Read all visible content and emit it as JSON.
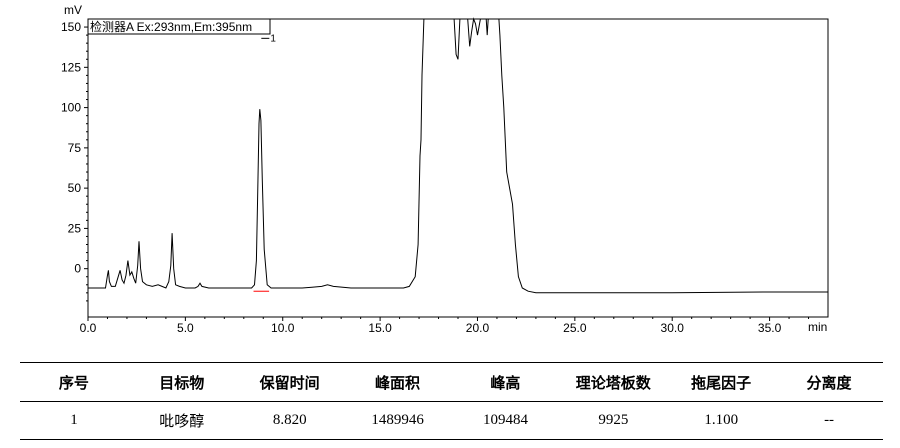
{
  "chart_data": {
    "type": "line",
    "title": "",
    "legend_text": "检测器A Ex:293nm,Em:395nm",
    "ylabel": "mV",
    "xlabel": "min",
    "xlim": [
      0,
      38
    ],
    "ylim": [
      -30,
      155
    ],
    "x_ticks": [
      0,
      5,
      10,
      15,
      20,
      25,
      30,
      35
    ],
    "x_tick_labels": [
      "0.0",
      "5.0",
      "10.0",
      "15.0",
      "20.0",
      "25.0",
      "30.0",
      "35.0"
    ],
    "y_ticks": [
      0,
      25,
      50,
      75,
      100,
      125,
      150
    ],
    "y_tick_labels": [
      "0",
      "25",
      "50",
      "75",
      "100",
      "125",
      "150"
    ],
    "grid": false,
    "line_color": "#000000",
    "baseline_color": "#ff0000",
    "peak_label": "1",
    "peak_label_at": [
      8.9,
      143
    ],
    "integration_baseline": [
      [
        8.5,
        -14
      ],
      [
        9.3,
        -14
      ]
    ],
    "series": [
      {
        "points": [
          [
            0.0,
            -12
          ],
          [
            0.9,
            -12
          ],
          [
            1.0,
            -4
          ],
          [
            1.05,
            -1
          ],
          [
            1.1,
            -8
          ],
          [
            1.2,
            -11
          ],
          [
            1.4,
            -11
          ],
          [
            1.55,
            -5
          ],
          [
            1.65,
            -1
          ],
          [
            1.75,
            -7
          ],
          [
            1.85,
            -9
          ],
          [
            1.95,
            -4
          ],
          [
            2.05,
            5
          ],
          [
            2.15,
            -4
          ],
          [
            2.25,
            -2
          ],
          [
            2.35,
            -6
          ],
          [
            2.45,
            -9
          ],
          [
            2.55,
            2
          ],
          [
            2.62,
            17
          ],
          [
            2.7,
            0
          ],
          [
            2.8,
            -8
          ],
          [
            3.0,
            -10
          ],
          [
            3.3,
            -11
          ],
          [
            3.6,
            -10
          ],
          [
            3.8,
            -11
          ],
          [
            4.0,
            -12
          ],
          [
            4.15,
            -8
          ],
          [
            4.25,
            2
          ],
          [
            4.32,
            22
          ],
          [
            4.4,
            0
          ],
          [
            4.5,
            -10
          ],
          [
            4.7,
            -11
          ],
          [
            5.0,
            -12
          ],
          [
            5.5,
            -12
          ],
          [
            5.65,
            -11
          ],
          [
            5.75,
            -9
          ],
          [
            5.85,
            -11
          ],
          [
            6.2,
            -12
          ],
          [
            7.0,
            -12
          ],
          [
            8.0,
            -12
          ],
          [
            8.4,
            -12
          ],
          [
            8.55,
            -10
          ],
          [
            8.65,
            5
          ],
          [
            8.72,
            50
          ],
          [
            8.78,
            90
          ],
          [
            8.82,
            99
          ],
          [
            8.88,
            92
          ],
          [
            8.95,
            55
          ],
          [
            9.05,
            12
          ],
          [
            9.2,
            -10
          ],
          [
            9.4,
            -12
          ],
          [
            10.0,
            -12
          ],
          [
            11.0,
            -12
          ],
          [
            11.5,
            -11.5
          ],
          [
            12.0,
            -11
          ],
          [
            12.3,
            -10
          ],
          [
            12.6,
            -11
          ],
          [
            13.5,
            -12
          ],
          [
            14.5,
            -12
          ],
          [
            15.5,
            -12
          ],
          [
            16.2,
            -12
          ],
          [
            16.5,
            -11
          ],
          [
            16.8,
            -5
          ],
          [
            16.95,
            15
          ],
          [
            17.05,
            70
          ],
          [
            17.1,
            80
          ],
          [
            17.15,
            120
          ],
          [
            17.25,
            155
          ],
          [
            18.8,
            155
          ],
          [
            18.9,
            133
          ],
          [
            19.0,
            130
          ],
          [
            19.1,
            155
          ],
          [
            19.5,
            155
          ],
          [
            19.6,
            138
          ],
          [
            19.7,
            147
          ],
          [
            19.8,
            155
          ],
          [
            19.9,
            152
          ],
          [
            20.0,
            145
          ],
          [
            20.15,
            155
          ],
          [
            20.45,
            155
          ],
          [
            20.5,
            145
          ],
          [
            20.55,
            155
          ],
          [
            21.1,
            155
          ],
          [
            21.15,
            145
          ],
          [
            21.25,
            120
          ],
          [
            21.35,
            100
          ],
          [
            21.5,
            60
          ],
          [
            21.65,
            50
          ],
          [
            21.8,
            40
          ],
          [
            21.95,
            15
          ],
          [
            22.1,
            -5
          ],
          [
            22.3,
            -12
          ],
          [
            22.6,
            -14
          ],
          [
            23.0,
            -15
          ],
          [
            25.0,
            -15
          ],
          [
            30.0,
            -15
          ],
          [
            35.0,
            -14.5
          ],
          [
            37.0,
            -14.5
          ],
          [
            38.0,
            -14.5
          ]
        ]
      }
    ]
  },
  "table": {
    "headers": [
      "序号",
      "目标物",
      "保留时间",
      "峰面积",
      "峰高",
      "理论塔板数",
      "拖尾因子",
      "分离度"
    ],
    "rows": [
      [
        "1",
        "吡哆醇",
        "8.820",
        "1489946",
        "109484",
        "9925",
        "1.100",
        "--"
      ]
    ]
  }
}
